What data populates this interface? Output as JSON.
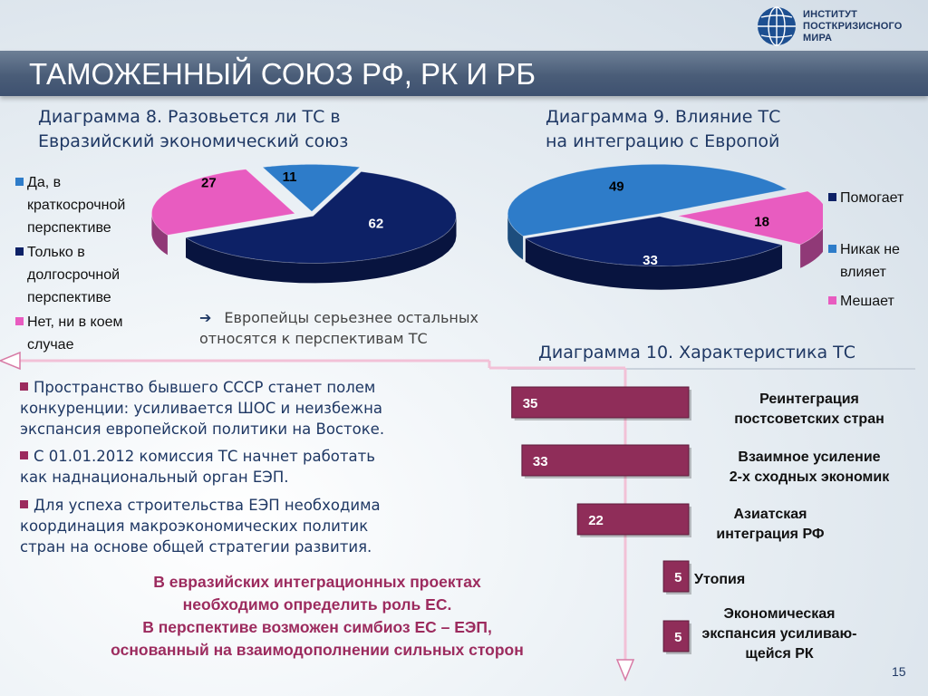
{
  "logo": {
    "icon": "globe-icon",
    "lines": [
      "ИНСТИТУТ",
      "ПОСТКРИЗИСНОГО",
      "МИРА"
    ]
  },
  "slide": {
    "title": "ТАМОЖЕННЫЙ СОЮЗ РФ, РК И РБ",
    "page_number": "15"
  },
  "colors": {
    "navy": "#0d2166",
    "blue": "#2e7cc9",
    "pink": "#e85cc0",
    "maroon": "#8f2d59",
    "title_bar": "#4a5d78",
    "accent": "#9c2b5e"
  },
  "chart8": {
    "title_line1": "Диаграмма 8. Разовьется ли ТС в",
    "title_line2": "Евразийский экономический союз",
    "legend": [
      {
        "lines": [
          "Да, в",
          "краткосрочной",
          "перспективе"
        ]
      },
      {
        "lines": [
          "Только в",
          "долгосрочной",
          "перспективе"
        ]
      },
      {
        "lines": [
          "Нет, ни в коем",
          "случае"
        ]
      }
    ]
  },
  "chart9": {
    "title_line1": "Диаграмма 9. Влияние ТС",
    "title_line2": "на интеграцию с Европой",
    "legend": [
      {
        "lines": [
          "Помогает"
        ]
      },
      {
        "lines": [
          "Никак не",
          "влияет"
        ]
      },
      {
        "lines": [
          "Мешает"
        ]
      }
    ]
  },
  "note": {
    "arrow": "➔",
    "line1": "Европейцы серьезнее остальных",
    "line2": "относятся к перспективам ТС"
  },
  "chart10": {
    "title": "Диаграмма 10. Характеристика ТС"
  },
  "bullets": [
    {
      "lines": [
        "Пространство бывшего СССР станет полем",
        "конкуренции: усиливается ШОС и неизбежна",
        "экспансия европейской политики на Востоке."
      ]
    },
    {
      "lines": [
        "С 01.01.2012 комиссия ТС начнет работать",
        "как наднациональный орган ЕЭП."
      ]
    },
    {
      "lines": [
        "Для успеха строительства ЕЭП необходима",
        "координация макроэкономических политик",
        "стран на основе общей стратегии развития."
      ]
    }
  ],
  "conclusion": {
    "lines": [
      "В евразийских интеграционных проектах",
      "необходимо определить роль ЕС.",
      "В перспективе возможен симбиоз ЕС – ЕЭП,",
      "основанный на взаимодополнении сильных сторон"
    ]
  },
  "chart_data": [
    {
      "type": "pie",
      "title": "Диаграмма 8. Разовьется ли ТС в Евразийский экономический союз",
      "categories": [
        "Да, в краткосрочной перспективе",
        "Только в долгосрочной перспективе",
        "Нет, ни в коем случае"
      ],
      "values": [
        11,
        62,
        27
      ],
      "colors": [
        "#2e7cc9",
        "#0d2166",
        "#e85cc0"
      ],
      "style": "3d exploded",
      "legend": "left"
    },
    {
      "type": "pie",
      "title": "Диаграмма 9. Влияние ТС на интеграцию с Европой",
      "categories": [
        "Помогает",
        "Никак не влияет",
        "Мешает"
      ],
      "values": [
        33,
        49,
        18
      ],
      "colors": [
        "#0d2166",
        "#2e7cc9",
        "#e85cc0"
      ],
      "style": "3d exploded",
      "legend": "right"
    },
    {
      "type": "bar",
      "orientation": "horizontal",
      "title": "Диаграмма 10. Характеристика ТС",
      "categories": [
        "Реинтеграция постсоветских стран",
        "Взаимное усиление 2-х сходных экономик",
        "Азиатская интеграция РФ",
        "Утопия",
        "Экономическая экспансия усиливающейся РК"
      ],
      "label_lines": [
        [
          "Реинтеграция",
          "постсоветских стран"
        ],
        [
          "Взаимное усиление",
          "2-х сходных экономик"
        ],
        [
          "Азиатская",
          "интеграция РФ"
        ],
        [
          "Утопия"
        ],
        [
          "Экономическая",
          "экспансия усиливаю-",
          "щейся РК"
        ]
      ],
      "values": [
        35,
        33,
        22,
        5,
        5
      ],
      "color": "#8f2d59",
      "bars_anchor": "right",
      "data_labels": true
    }
  ]
}
